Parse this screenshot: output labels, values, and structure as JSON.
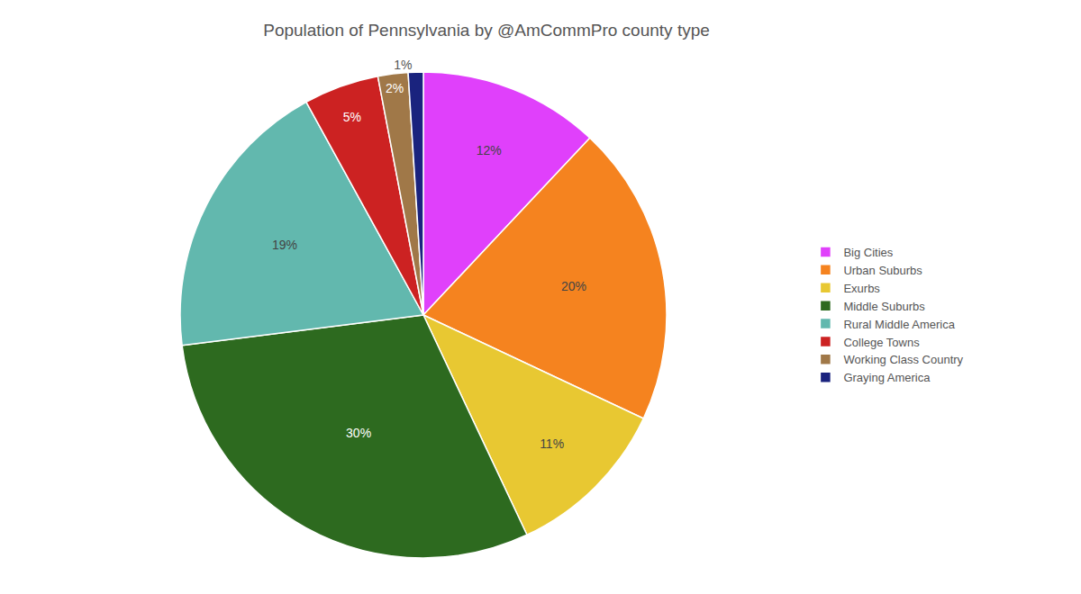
{
  "chart_data": {
    "type": "pie",
    "title": "Population of Pennsylvania by @AmCommPro county type",
    "categories": [
      "Big Cities",
      "Urban Suburbs",
      "Exurbs",
      "Middle Suburbs",
      "Rural Middle America",
      "College Towns",
      "Working Class Country",
      "Graying America"
    ],
    "values": [
      12,
      20,
      11,
      30,
      19,
      5,
      2,
      1
    ],
    "value_labels": [
      "12%",
      "20%",
      "11%",
      "30%",
      "19%",
      "5%",
      "2%",
      "1%"
    ],
    "colors": [
      "#e040fb",
      "#f5831f",
      "#e8c832",
      "#2d6a1f",
      "#62b8ae",
      "#cc2222",
      "#a07848",
      "#1a237e"
    ],
    "data_labels": true,
    "legend": "right"
  }
}
